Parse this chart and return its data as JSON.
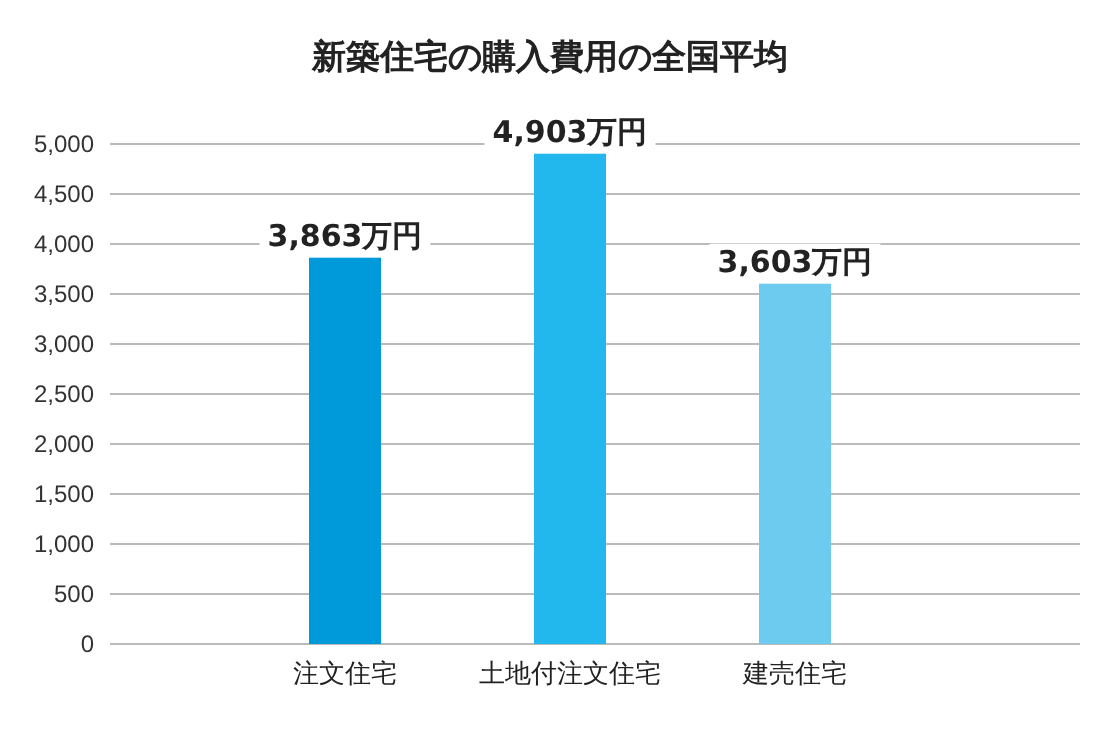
{
  "chart_data": {
    "type": "bar",
    "title": "新築住宅の購入費用の全国平均",
    "categories": [
      "注文住宅",
      "土地付注文住宅",
      "建売住宅"
    ],
    "values": [
      3863,
      4903,
      3603
    ],
    "colors": [
      "#0099d9",
      "#22b8ee",
      "#6ccbef"
    ],
    "value_labels": [
      "3,863万円",
      "4,903万円",
      "3,603万円"
    ],
    "ylim": [
      0,
      5000
    ],
    "yticks": [
      {
        "value": 0,
        "label": "0"
      },
      {
        "value": 500,
        "label": "500"
      },
      {
        "value": 1000,
        "label": "1,000"
      },
      {
        "value": 1500,
        "label": "1,500"
      },
      {
        "value": 2000,
        "label": "2,000"
      },
      {
        "value": 2500,
        "label": "2,500"
      },
      {
        "value": 3000,
        "label": "3,000"
      },
      {
        "value": 3500,
        "label": "3,500"
      },
      {
        "value": 4000,
        "label": "4,000"
      },
      {
        "value": 4500,
        "label": "4,500"
      },
      {
        "value": 5000,
        "label": "5,000"
      }
    ],
    "grid": "y"
  }
}
